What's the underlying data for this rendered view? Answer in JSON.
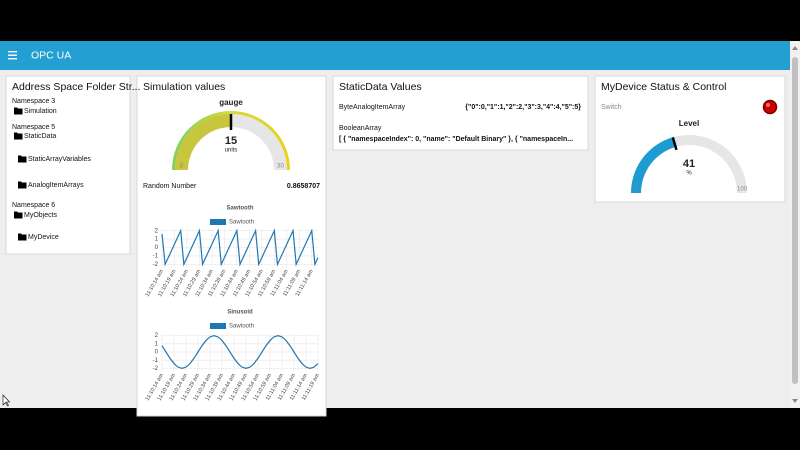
{
  "header": {
    "title": "OPC UA"
  },
  "address_space": {
    "title": "Address Space Folder Str...",
    "items": [
      "Namespace 3",
      "Simulation",
      "Namespace 5",
      "StaticData",
      "StaticArrayVariables",
      "AnalogItemArrays",
      "Namespace 6",
      "MyObjects",
      "MyDevice"
    ]
  },
  "simulation": {
    "title": "Simulation values",
    "gauge": {
      "label": "gauge",
      "value": 15,
      "units": "units",
      "min": 0,
      "max": 30
    },
    "random_number": {
      "label": "Random Number",
      "value": 0.8658707
    },
    "charts": [
      {
        "type": "line",
        "title": "Sawtooth",
        "categories": [
          "11:10:14 am",
          null,
          null,
          null,
          "11:10:19 am",
          null,
          null,
          null,
          "11:10:24 am",
          null,
          null,
          null,
          "11:10:29 am",
          null,
          null,
          null,
          "11:10:34 am",
          null,
          null,
          null,
          "11:10:39 am",
          null,
          null,
          null,
          "11:10:44 am",
          null,
          null,
          null,
          "11:10:49 am",
          null,
          null,
          null,
          "11:10:54 am",
          null,
          null,
          null,
          "11:10:59 am",
          null,
          null,
          null,
          "11:11:04 am",
          null,
          null,
          null,
          "11:11:09 am",
          null,
          null,
          null,
          "11:11:14 am",
          null,
          null
        ],
        "series": [
          {
            "name": "Sawtooth",
            "color": "#1f77b4",
            "values": [
              1.6,
              -2,
              -1.2,
              -0.4,
              0.4,
              1.2,
              2,
              -2,
              -1.2,
              -0.4,
              0.4,
              1.2,
              2,
              -2,
              -1.2,
              -0.4,
              0.4,
              1.2,
              2,
              -2,
              -1.2,
              -0.4,
              0.4,
              1.2,
              2,
              -2,
              -1.2,
              -0.4,
              0.4,
              1.2,
              2,
              -2,
              -1.2,
              -0.4,
              0.4,
              1.2,
              2,
              -2,
              -1.2,
              -0.4,
              0.4,
              1.2,
              2,
              -2,
              -1.2,
              -0.4,
              0.4,
              1.2,
              2,
              -2,
              -1.2
            ]
          }
        ],
        "ylim": [
          -2.2,
          2.2
        ],
        "yticks": [
          2,
          1,
          0,
          -1,
          -2
        ],
        "grid": true
      },
      {
        "type": "line",
        "title": "Sinusoid",
        "categories": [
          "11:10:14 am",
          null,
          null,
          "11:10:19 am",
          null,
          null,
          "11:10:24 am",
          null,
          null,
          "11:10:29 am",
          null,
          null,
          "11:10:34 am",
          null,
          null,
          "11:10:39 am",
          null,
          null,
          "11:10:44 am",
          null,
          null,
          "11:10:49 am",
          null,
          null,
          "11:10:54 am",
          null,
          null,
          "11:10:59 am",
          null,
          null,
          "11:11:04 am",
          null,
          null,
          "11:11:09 am",
          null,
          null,
          "11:11:14 am",
          null,
          null,
          "11:11:19 am"
        ],
        "series": [
          {
            "name": "Sawtooth",
            "color": "#1f77b4",
            "values": [
              0.77,
              0,
              -0.77,
              -1.41,
              -1.85,
              -2,
              -1.85,
              -1.41,
              -0.77,
              0,
              0.77,
              1.41,
              1.85,
              2,
              1.85,
              1.41,
              0.77,
              0,
              -0.77,
              -1.41,
              -1.85,
              -2,
              -1.85,
              -1.41,
              -0.77,
              0,
              0.77,
              1.41,
              1.85,
              2,
              1.85,
              1.41,
              0.77,
              0,
              -0.77,
              -1.41,
              -1.85,
              -2,
              -1.85,
              -1.41
            ]
          }
        ],
        "ylim": [
          -2.2,
          2.2
        ],
        "yticks": [
          2,
          1,
          0,
          -1,
          -2
        ],
        "grid": true
      }
    ]
  },
  "static_data": {
    "title": "StaticData Values",
    "items": [
      {
        "label": "ByteAnalogItemArray",
        "value": "{\"0\":0,\"1\":1,\"2\":2,\"3\":3,\"4\":4,\"5\":5}"
      },
      {
        "label": "BooleanArray",
        "value": "[ { \"namespaceIndex\": 0, \"name\": \"Default Binary\" }, { \"namespaceIn..."
      }
    ]
  },
  "device": {
    "title": "MyDevice Status & Control",
    "switch_label": "Switch",
    "gauge": {
      "label": "Level",
      "value": 41,
      "units": "%",
      "min": 0,
      "max": 100
    }
  }
}
